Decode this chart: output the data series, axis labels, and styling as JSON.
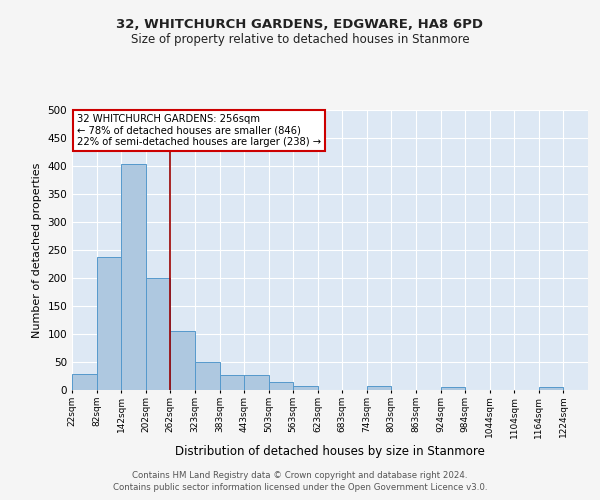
{
  "title": "32, WHITCHURCH GARDENS, EDGWARE, HA8 6PD",
  "subtitle": "Size of property relative to detached houses in Stanmore",
  "xlabel": "Distribution of detached houses by size in Stanmore",
  "ylabel": "Number of detached properties",
  "bin_labels": [
    "22sqm",
    "82sqm",
    "142sqm",
    "202sqm",
    "262sqm",
    "323sqm",
    "383sqm",
    "443sqm",
    "503sqm",
    "563sqm",
    "623sqm",
    "683sqm",
    "743sqm",
    "803sqm",
    "863sqm",
    "924sqm",
    "984sqm",
    "1044sqm",
    "1104sqm",
    "1164sqm",
    "1224sqm"
  ],
  "bar_values": [
    28,
    238,
    403,
    200,
    106,
    50,
    26,
    26,
    14,
    8,
    0,
    0,
    7,
    0,
    0,
    5,
    0,
    0,
    0,
    5,
    0
  ],
  "bar_color": "#aec8e0",
  "bar_edge_color": "#5599cc",
  "background_color": "#dde8f4",
  "grid_color": "#ffffff",
  "property_line_color": "#990000",
  "annotation_text": "32 WHITCHURCH GARDENS: 256sqm\n← 78% of detached houses are smaller (846)\n22% of semi-detached houses are larger (238) →",
  "annotation_box_color": "#ffffff",
  "annotation_box_edge": "#cc0000",
  "ylim": [
    0,
    500
  ],
  "footnote": "Contains HM Land Registry data © Crown copyright and database right 2024.\nContains public sector information licensed under the Open Government Licence v3.0.",
  "bin_edges": [
    22,
    82,
    142,
    202,
    262,
    323,
    383,
    443,
    503,
    563,
    623,
    683,
    743,
    803,
    863,
    924,
    984,
    1044,
    1104,
    1164,
    1224,
    1284
  ],
  "fig_width": 6.0,
  "fig_height": 5.0,
  "fig_bg": "#f5f5f5"
}
